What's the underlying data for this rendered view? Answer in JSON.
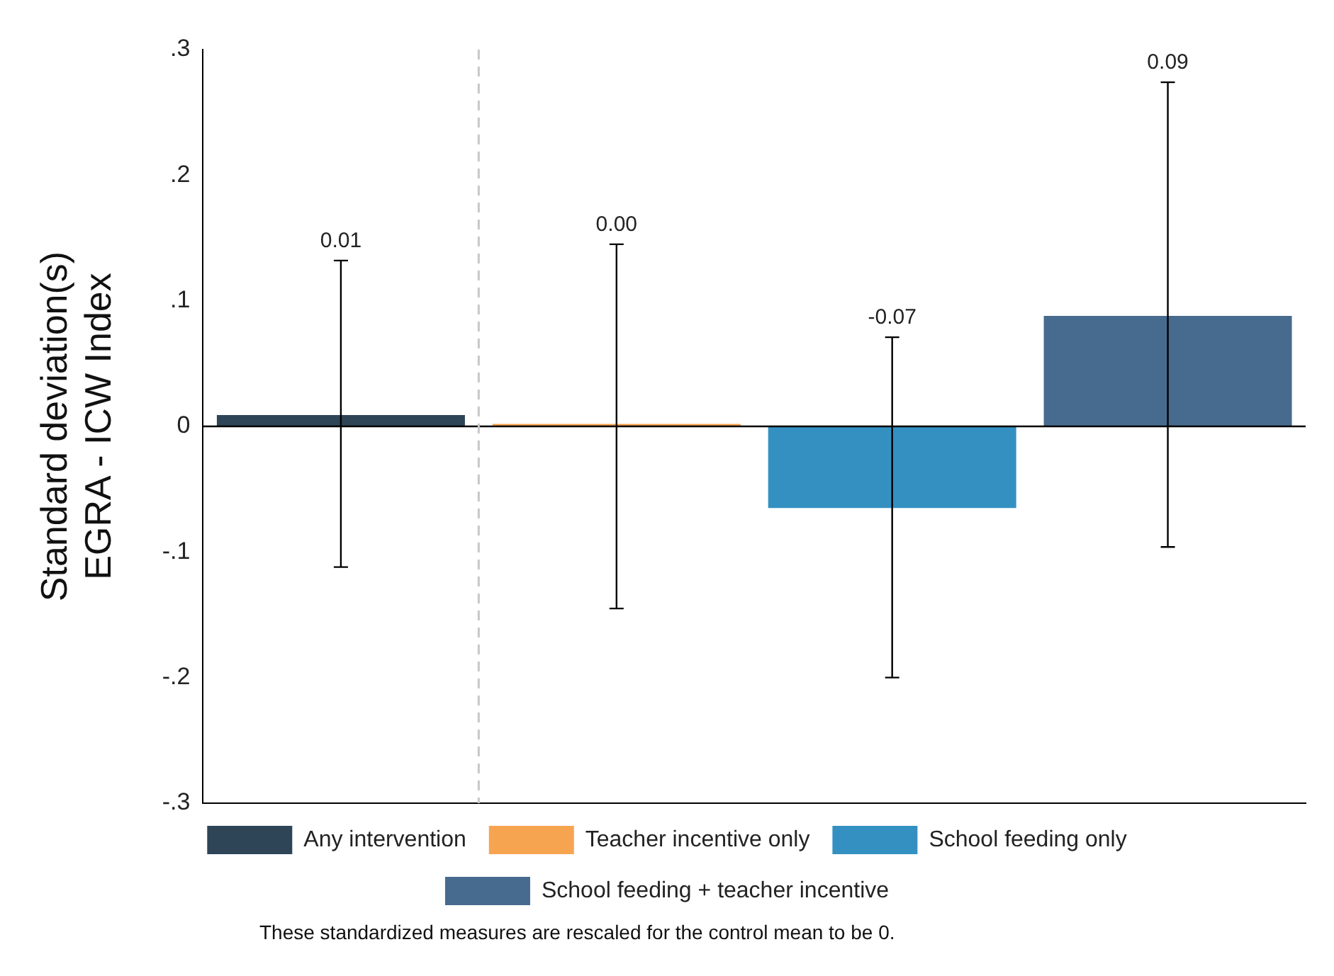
{
  "chart_data": {
    "type": "bar",
    "ylabel": "Standard deviation(s)\nEGRA - ICW Index",
    "categories": [
      null,
      null,
      null,
      null
    ],
    "series": [
      {
        "name": "Any intervention",
        "color": "#2e4457",
        "values": [
          0.009,
          null,
          null,
          null
        ],
        "errors": [
          [
            -0.112,
            0.132
          ],
          null,
          null,
          null
        ]
      },
      {
        "name": "Teacher incentive only",
        "color": "#f7a451",
        "values": [
          null,
          0.002,
          null,
          null
        ],
        "errors": [
          null,
          [
            -0.145,
            0.145
          ],
          null,
          null
        ]
      },
      {
        "name": "School feeding only",
        "color": "#3590c2",
        "values": [
          null,
          null,
          -0.065,
          null
        ],
        "errors": [
          null,
          null,
          [
            -0.2,
            0.071
          ],
          null
        ]
      },
      {
        "name": "School feeding + teacher incentive",
        "color": "#476b8e",
        "values": [
          null,
          null,
          null,
          0.088
        ],
        "errors": [
          null,
          null,
          null,
          [
            -0.096,
            0.274
          ]
        ]
      }
    ],
    "value_labels": [
      "0.01",
      "0.00",
      "-0.07",
      "0.09"
    ],
    "ylim": [
      -0.3,
      0.3
    ],
    "yticks": [
      {
        "value": -0.3,
        "label": "-.3"
      },
      {
        "value": -0.2,
        "label": "-.2"
      },
      {
        "value": -0.1,
        "label": "-.1"
      },
      {
        "value": 0,
        "label": "0"
      },
      {
        "value": 0.1,
        "label": ".1"
      },
      {
        "value": 0.2,
        "label": ".2"
      },
      {
        "value": 0.3,
        "label": ".3"
      }
    ],
    "tick_labels": "y",
    "grid": false,
    "legend": "bottom",
    "annotations": [
      "These standardized measures are rescaled for the control mean to be 0."
    ]
  }
}
